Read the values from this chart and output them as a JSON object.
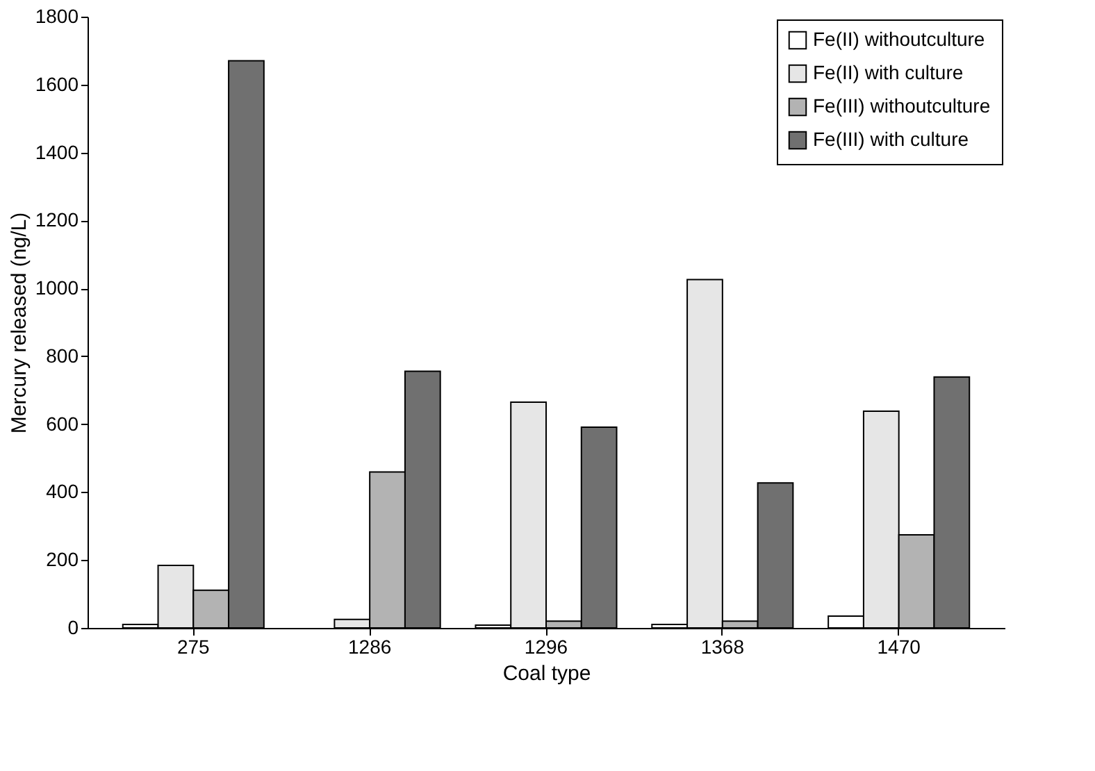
{
  "chart_data": {
    "type": "bar",
    "xlabel": "Coal type",
    "ylabel": "Mercury released (ng/L)",
    "categories": [
      "275",
      "1286",
      "1296",
      "1368",
      "1470"
    ],
    "series": [
      {
        "name": "Fe(II) withoutculture",
        "color": "#ffffff",
        "values": [
          10,
          null,
          8,
          10,
          35
        ]
      },
      {
        "name": "Fe(II) with culture",
        "color": "#e6e6e6",
        "values": [
          184,
          25,
          665,
          1026,
          638
        ]
      },
      {
        "name": "Fe(III) withoutculture",
        "color": "#b3b3b3",
        "values": [
          111,
          459,
          20,
          20,
          274
        ]
      },
      {
        "name": "Fe(III) with culture",
        "color": "#707070",
        "values": [
          1670,
          756,
          591,
          427,
          739
        ]
      }
    ],
    "ylim": [
      0,
      1800
    ],
    "yticks": [
      0,
      200,
      400,
      600,
      800,
      1000,
      1200,
      1400,
      1600,
      1800
    ],
    "grid": false,
    "legend": "top right"
  }
}
